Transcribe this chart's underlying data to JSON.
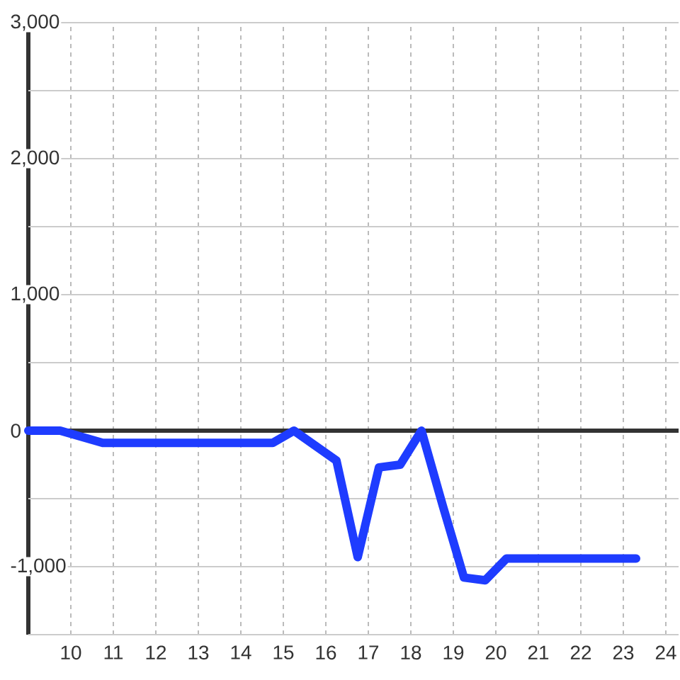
{
  "chart_data": {
    "type": "line",
    "x": [
      9,
      9.75,
      10.75,
      14.75,
      15.25,
      16.25,
      16.75,
      17.25,
      17.75,
      18.25,
      18.75,
      19.25,
      19.75,
      20.25,
      23.3
    ],
    "values": [
      0,
      0,
      -90,
      -90,
      0,
      -220,
      -930,
      -270,
      -250,
      0,
      -550,
      -1080,
      -1100,
      -940,
      -940
    ],
    "color": "#1e3cff",
    "xlim": [
      9,
      24.3
    ],
    "ylim": [
      -1500,
      3000
    ],
    "xticks": [
      10,
      11,
      12,
      13,
      14,
      15,
      16,
      17,
      18,
      19,
      20,
      21,
      22,
      23,
      24
    ],
    "yticks": [
      {
        "value": -1500,
        "label": null
      },
      {
        "value": -1000,
        "label": "-1,000"
      },
      {
        "value": -500,
        "label": null
      },
      {
        "value": 0,
        "label": "0"
      },
      {
        "value": 500,
        "label": null
      },
      {
        "value": 1000,
        "label": "1,000"
      },
      {
        "value": 1500,
        "label": null
      },
      {
        "value": 2000,
        "label": "2,000"
      },
      {
        "value": 2500,
        "label": null
      },
      {
        "value": 3000,
        "label": "3,000"
      }
    ],
    "grid": true,
    "ref_lines": [
      {
        "axis": "y",
        "value": 0,
        "color": "#333333"
      }
    ]
  }
}
